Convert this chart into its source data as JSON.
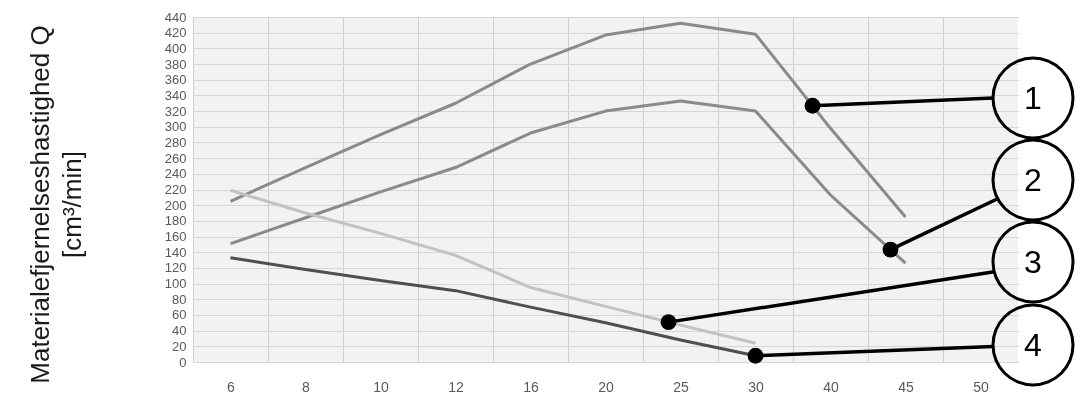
{
  "chart_data": {
    "type": "line",
    "ylabel": "Materialefjernelseshastighed Q [cm³/min]",
    "categories": [
      "6",
      "8",
      "10",
      "12",
      "16",
      "20",
      "25",
      "30",
      "40",
      "45",
      "50"
    ],
    "series": [
      {
        "name": "1",
        "color": "#8a8a8a",
        "values": [
          205,
          248,
          290,
          330,
          380,
          417,
          432,
          418,
          298,
          185,
          null
        ]
      },
      {
        "name": "2",
        "color": "#8a8a8a",
        "values": [
          151,
          184,
          217,
          248,
          292,
          320,
          333,
          320,
          213,
          126,
          null
        ]
      },
      {
        "name": "3",
        "color": "#c2c2c2",
        "values": [
          219,
          190,
          164,
          136,
          95,
          71,
          47,
          24,
          null,
          null,
          null
        ]
      },
      {
        "name": "4",
        "color": "#4f4f4f",
        "values": [
          133,
          118,
          104,
          91,
          70,
          50,
          28,
          8,
          null,
          null,
          null
        ]
      }
    ],
    "ylim": [
      0,
      440
    ],
    "yticks": [
      0,
      20,
      40,
      60,
      80,
      100,
      120,
      140,
      160,
      180,
      200,
      220,
      240,
      260,
      280,
      300,
      320,
      340,
      360,
      380,
      400,
      420,
      440
    ],
    "grid": true,
    "line_style": "solid"
  }
}
